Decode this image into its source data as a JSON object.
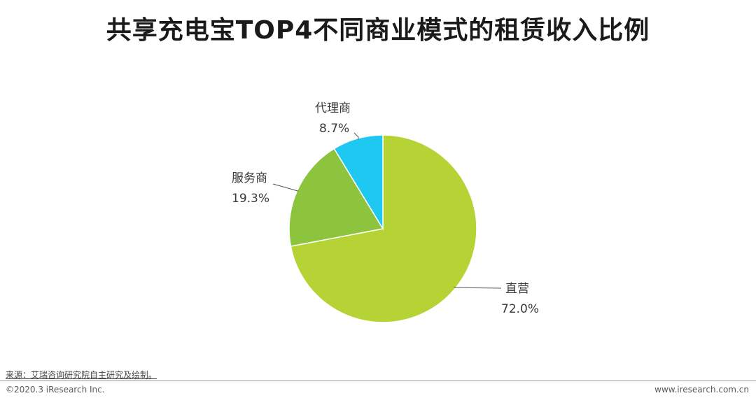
{
  "header": {
    "title": "共享充电宝TOP4不同商业模式的租赁收入比例"
  },
  "chart_data": {
    "type": "pie",
    "title": "共享充电宝TOP4不同商业模式的租赁收入比例",
    "categories": [
      "直营",
      "服务商",
      "代理商"
    ],
    "values": [
      72.0,
      19.3,
      8.7
    ],
    "value_labels": [
      "72.0%",
      "19.3%",
      "8.7%"
    ],
    "colors": [
      "#B5D334",
      "#8CC43E",
      "#1EC8F0"
    ],
    "unit": "%",
    "legend": "none"
  },
  "footer": {
    "source": "来源：艾瑞咨询研究院自主研究及绘制。",
    "copyright": "©2020.3 iResearch Inc.",
    "website": "www.iresearch.com.cn"
  }
}
